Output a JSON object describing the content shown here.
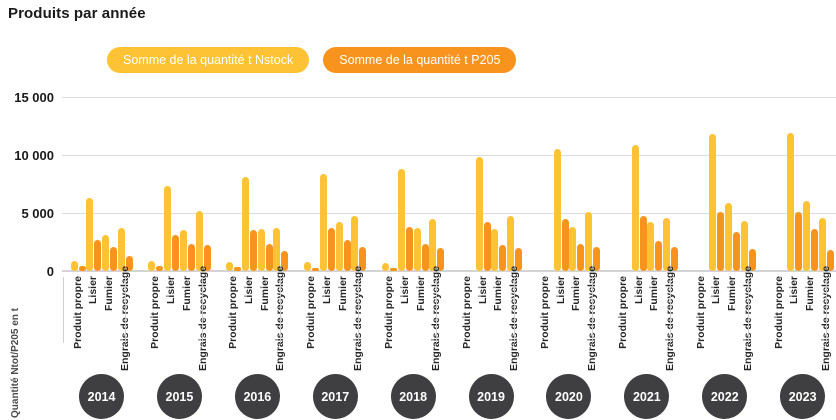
{
  "chart_data": {
    "type": "bar",
    "title": "Produits par année",
    "ylabel": "Quantité Ntot/P205 en t",
    "ylim": [
      0,
      15000
    ],
    "yticks": [
      0,
      5000,
      10000,
      15000
    ],
    "ytick_labels": [
      "0",
      "5 000",
      "10 000",
      "15 000"
    ],
    "grid": true,
    "legend_position": "top",
    "years": [
      "2014",
      "2015",
      "2016",
      "2017",
      "2018",
      "2019",
      "2020",
      "2021",
      "2022",
      "2023"
    ],
    "categories": [
      "Produit propre",
      "Lisier",
      "Fumier",
      "Engrais de recyclage"
    ],
    "series": [
      {
        "name": "Somme de la quantité t Nstock",
        "color": "#fdc335",
        "values": [
          [
            900,
            6300,
            3100,
            3700
          ],
          [
            900,
            7300,
            3500,
            5200
          ],
          [
            800,
            8100,
            3600,
            3700
          ],
          [
            800,
            8400,
            4200,
            4700
          ],
          [
            700,
            8800,
            3700,
            4500
          ],
          [
            null,
            9800,
            3600,
            4700
          ],
          [
            null,
            10500,
            3800,
            5100
          ],
          [
            null,
            10900,
            4200,
            4600
          ],
          [
            null,
            11800,
            5900,
            4300
          ],
          [
            null,
            11900,
            6000,
            4600
          ]
        ]
      },
      {
        "name": "Somme de la quantité t P205",
        "color": "#f8941e",
        "values": [
          [
            400,
            2700,
            2100,
            1300
          ],
          [
            400,
            3100,
            2300,
            2200
          ],
          [
            350,
            3500,
            2300,
            1700
          ],
          [
            300,
            3700,
            2700,
            2100
          ],
          [
            250,
            3800,
            2300,
            2000
          ],
          [
            null,
            4200,
            2200,
            2000
          ],
          [
            null,
            4500,
            2300,
            2100
          ],
          [
            null,
            4700,
            2600,
            2100
          ],
          [
            null,
            5100,
            3400,
            1900
          ],
          [
            null,
            5100,
            3600,
            1800
          ]
        ]
      }
    ]
  }
}
